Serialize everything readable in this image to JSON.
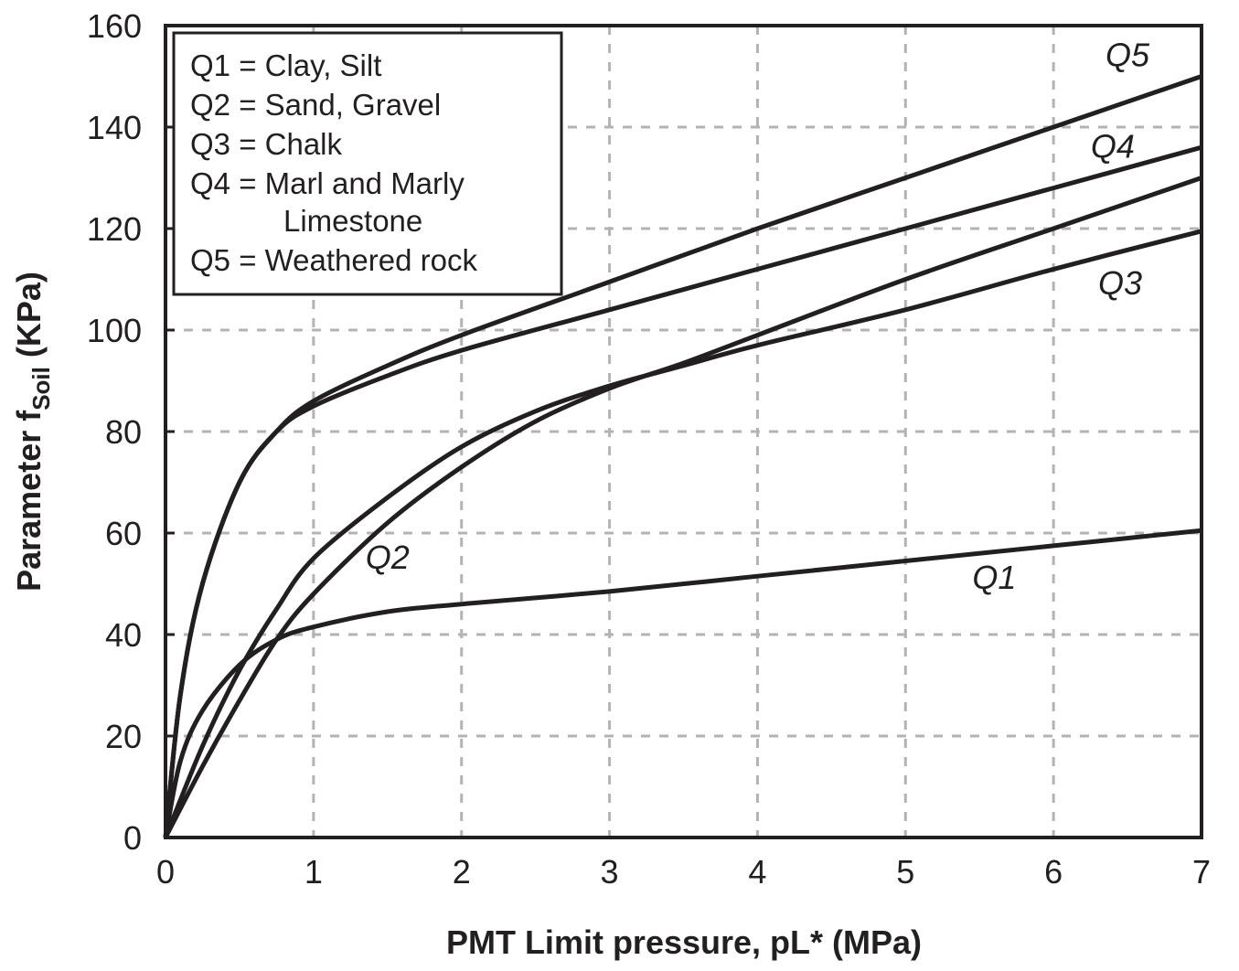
{
  "chart_data": {
    "type": "line",
    "title": "",
    "xlabel": "PMT Limit pressure, pL* (MPa)",
    "ylabel": "Parameter f",
    "ylabel_subscript": "Soil",
    "ylabel_unit": " (KPa)",
    "xlim": [
      0,
      7
    ],
    "ylim": [
      0,
      160
    ],
    "xticks": [
      "0",
      "1",
      "2",
      "3",
      "4",
      "5",
      "6",
      "7"
    ],
    "yticks": [
      "0",
      "20",
      "40",
      "60",
      "80",
      "100",
      "120",
      "140",
      "160"
    ],
    "grid": true,
    "grid_style": "dashed",
    "grid_color": "#b3b3b3",
    "line_color": "#231f20",
    "legend_placement": "top-left",
    "legend": [
      "Q1 = Clay, Silt",
      "Q2 = Sand, Gravel",
      "Q3 = Chalk",
      "Q4 = Marl and Marly",
      "Limestone",
      "Q5 = Weathered rock"
    ],
    "series": [
      {
        "name": "Q1",
        "x": [
          0,
          0.1,
          0.25,
          0.5,
          0.75,
          1,
          1.5,
          2,
          3,
          4,
          5,
          6,
          7
        ],
        "y": [
          0,
          15,
          25,
          34,
          39,
          41.5,
          44.5,
          46,
          48.5,
          51.5,
          54.5,
          57.5,
          60.5
        ]
      },
      {
        "name": "Q2",
        "x": [
          0,
          0.25,
          0.5,
          0.75,
          1,
          1.5,
          2,
          2.5,
          3,
          3.5,
          4,
          5,
          6,
          7
        ],
        "y": [
          0,
          14,
          27,
          39,
          48,
          62,
          73,
          82,
          88.5,
          93.5,
          99,
          110,
          120,
          130
        ]
      },
      {
        "name": "Q3",
        "x": [
          0,
          0.25,
          0.5,
          0.75,
          1,
          1.5,
          2,
          2.5,
          3,
          3.5,
          4,
          5,
          6,
          7
        ],
        "y": [
          0,
          18,
          33,
          45,
          55,
          67,
          77,
          84,
          89,
          93,
          97,
          104,
          112,
          119.5
        ]
      },
      {
        "name": "Q4",
        "x": [
          0,
          0.1,
          0.25,
          0.5,
          0.75,
          1,
          1.5,
          2,
          3,
          4,
          5,
          6,
          7
        ],
        "y": [
          0,
          28,
          50,
          70,
          80,
          85,
          91,
          96,
          104,
          112,
          120,
          128,
          136
        ]
      },
      {
        "name": "Q5",
        "x": [
          0,
          0.1,
          0.25,
          0.5,
          0.75,
          1,
          1.5,
          2,
          3,
          4,
          5,
          6,
          7
        ],
        "y": [
          0,
          28,
          50,
          70,
          80,
          86,
          93,
          99,
          109.5,
          120,
          130,
          140,
          150
        ]
      }
    ],
    "annotations": [
      {
        "text": "Q5",
        "x": 6.5,
        "y": 152
      },
      {
        "text": "Q4",
        "x": 6.4,
        "y": 134
      },
      {
        "text": "Q3",
        "x": 6.45,
        "y": 107
      },
      {
        "text": "Q2",
        "x": 1.5,
        "y": 53
      },
      {
        "text": "Q1",
        "x": 5.6,
        "y": 49
      }
    ]
  }
}
